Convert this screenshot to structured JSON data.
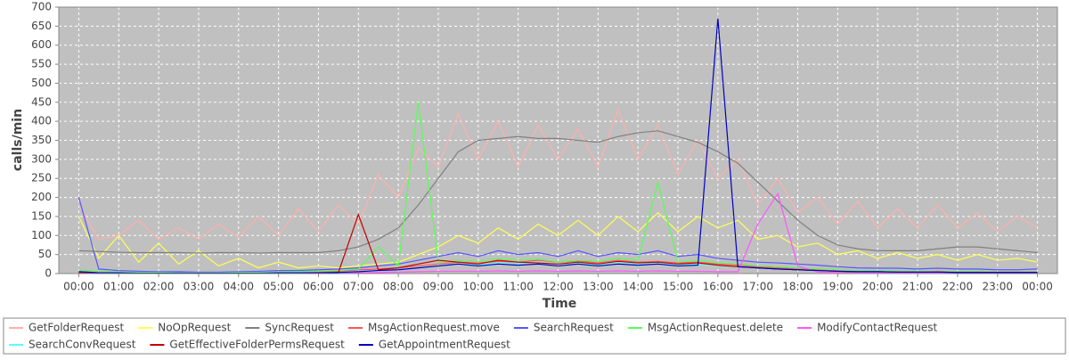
{
  "chart_data": {
    "type": "line",
    "y_label": "calls/min",
    "x_label": "Time",
    "x": [
      0,
      0.5,
      1,
      1.5,
      2,
      2.5,
      3,
      3.5,
      4,
      4.5,
      5,
      5.5,
      6,
      6.5,
      7,
      7.5,
      8,
      8.5,
      9,
      9.5,
      10,
      10.5,
      11,
      11.5,
      12,
      12.5,
      13,
      13.5,
      14,
      14.5,
      15,
      15.5,
      16,
      16.5,
      17,
      17.5,
      18,
      18.5,
      19,
      19.5,
      20,
      20.5,
      21,
      21.5,
      22,
      22.5,
      23,
      23.5,
      24
    ],
    "xlim": [
      -0.5,
      24.5
    ],
    "xticks": [
      {
        "value": 0,
        "label": "00:00"
      },
      {
        "value": 1,
        "label": "01:00"
      },
      {
        "value": 2,
        "label": "02:00"
      },
      {
        "value": 3,
        "label": "03:00"
      },
      {
        "value": 4,
        "label": "04:00"
      },
      {
        "value": 5,
        "label": "05:00"
      },
      {
        "value": 6,
        "label": "06:00"
      },
      {
        "value": 7,
        "label": "07:00"
      },
      {
        "value": 8,
        "label": "08:00"
      },
      {
        "value": 9,
        "label": "09:00"
      },
      {
        "value": 10,
        "label": "10:00"
      },
      {
        "value": 11,
        "label": "11:00"
      },
      {
        "value": 12,
        "label": "12:00"
      },
      {
        "value": 13,
        "label": "13:00"
      },
      {
        "value": 14,
        "label": "14:00"
      },
      {
        "value": 15,
        "label": "15:00"
      },
      {
        "value": 16,
        "label": "16:00"
      },
      {
        "value": 17,
        "label": "17:00"
      },
      {
        "value": 18,
        "label": "18:00"
      },
      {
        "value": 19,
        "label": "19:00"
      },
      {
        "value": 20,
        "label": "20:00"
      },
      {
        "value": 21,
        "label": "21:00"
      },
      {
        "value": 22,
        "label": "22:00"
      },
      {
        "value": 23,
        "label": "23:00"
      },
      {
        "value": 24,
        "label": "00:00"
      }
    ],
    "ylim": [
      0,
      700
    ],
    "yticks": [
      0,
      50,
      100,
      150,
      200,
      250,
      300,
      350,
      400,
      450,
      500,
      550,
      600,
      650,
      700
    ],
    "grid": true,
    "series": [
      {
        "name": "GetFolderRequest",
        "color": "#ffafaf",
        "values": [
          180,
          90,
          100,
          140,
          90,
          120,
          90,
          130,
          95,
          150,
          100,
          170,
          110,
          180,
          130,
          260,
          200,
          330,
          280,
          420,
          300,
          400,
          280,
          390,
          300,
          380,
          280,
          430,
          300,
          390,
          260,
          350,
          250,
          300,
          180,
          250,
          160,
          200,
          130,
          190,
          120,
          170,
          120,
          180,
          120,
          160,
          110,
          150,
          120
        ]
      },
      {
        "name": "NoOpRequest",
        "color": "#ffff55",
        "values": [
          150,
          40,
          100,
          30,
          80,
          25,
          60,
          20,
          40,
          15,
          30,
          15,
          20,
          15,
          20,
          25,
          30,
          50,
          70,
          100,
          80,
          120,
          90,
          130,
          100,
          140,
          100,
          150,
          110,
          160,
          110,
          150,
          120,
          140,
          90,
          100,
          70,
          80,
          50,
          60,
          40,
          55,
          40,
          50,
          35,
          50,
          35,
          40,
          30
        ]
      },
      {
        "name": "SyncRequest",
        "color": "#808080",
        "values": [
          60,
          58,
          56,
          55,
          55,
          55,
          54,
          55,
          55,
          54,
          55,
          55,
          55,
          60,
          70,
          90,
          120,
          180,
          250,
          320,
          350,
          355,
          360,
          355,
          355,
          350,
          345,
          360,
          370,
          375,
          360,
          345,
          320,
          290,
          240,
          190,
          140,
          100,
          75,
          65,
          60,
          60,
          60,
          65,
          70,
          70,
          65,
          60,
          55
        ]
      },
      {
        "name": "MsgActionRequest.move",
        "color": "#ff5555",
        "values": [
          5,
          3,
          4,
          3,
          3,
          2,
          3,
          2,
          2,
          3,
          4,
          3,
          5,
          6,
          10,
          12,
          15,
          20,
          25,
          30,
          28,
          32,
          30,
          35,
          30,
          33,
          28,
          35,
          30,
          32,
          28,
          30,
          25,
          22,
          18,
          15,
          12,
          10,
          8,
          8,
          6,
          6,
          5,
          6,
          5,
          5,
          4,
          4,
          4
        ]
      },
      {
        "name": "SearchRequest",
        "color": "#5555ff",
        "values": [
          200,
          12,
          8,
          6,
          5,
          5,
          4,
          4,
          5,
          6,
          8,
          8,
          10,
          12,
          15,
          20,
          25,
          35,
          45,
          55,
          45,
          60,
          50,
          55,
          45,
          60,
          45,
          55,
          50,
          60,
          45,
          50,
          40,
          35,
          30,
          28,
          25,
          22,
          18,
          15,
          14,
          14,
          12,
          14,
          12,
          12,
          10,
          10,
          12
        ]
      },
      {
        "name": "MsgActionRequest.delete",
        "color": "#55ff55",
        "values": [
          10,
          5,
          4,
          3,
          3,
          2,
          2,
          2,
          3,
          3,
          4,
          5,
          6,
          8,
          12,
          70,
          20,
          450,
          30,
          35,
          30,
          40,
          35,
          38,
          30,
          35,
          32,
          40,
          35,
          240,
          30,
          35,
          28,
          25,
          20,
          18,
          15,
          12,
          10,
          8,
          8,
          6,
          6,
          5,
          5,
          5,
          4,
          4,
          4
        ]
      },
      {
        "name": "ModifyContactRequest",
        "color": "#ff55ff",
        "values": [
          2,
          1,
          1,
          1,
          1,
          1,
          1,
          1,
          1,
          1,
          1,
          1,
          1,
          1,
          2,
          3,
          4,
          5,
          6,
          6,
          6,
          7,
          6,
          7,
          6,
          7,
          6,
          7,
          6,
          7,
          6,
          6,
          5,
          5,
          130,
          210,
          20,
          4,
          3,
          3,
          2,
          2,
          2,
          2,
          2,
          2,
          1,
          1,
          1
        ]
      },
      {
        "name": "SearchConvRequest",
        "color": "#55ffff",
        "values": [
          3,
          2,
          2,
          1,
          1,
          1,
          1,
          1,
          1,
          1,
          2,
          2,
          2,
          3,
          5,
          8,
          10,
          15,
          20,
          25,
          22,
          28,
          25,
          30,
          25,
          28,
          22,
          30,
          25,
          28,
          22,
          25,
          20,
          18,
          15,
          12,
          10,
          8,
          6,
          5,
          5,
          4,
          4,
          4,
          3,
          3,
          3,
          3,
          3
        ]
      },
      {
        "name": "GetEffectiveFolderPermsRequest",
        "color": "#c00000",
        "values": [
          2,
          1,
          1,
          1,
          1,
          1,
          1,
          1,
          1,
          1,
          1,
          1,
          2,
          3,
          155,
          10,
          15,
          25,
          35,
          30,
          25,
          35,
          30,
          28,
          25,
          30,
          25,
          32,
          28,
          30,
          25,
          28,
          22,
          18,
          15,
          12,
          10,
          8,
          6,
          5,
          5,
          4,
          4,
          4,
          3,
          3,
          3,
          3,
          3
        ]
      },
      {
        "name": "GetAppointmentRequest",
        "color": "#0000c0",
        "values": [
          5,
          2,
          2,
          1,
          1,
          1,
          1,
          1,
          1,
          1,
          2,
          2,
          2,
          3,
          5,
          8,
          10,
          15,
          20,
          25,
          20,
          25,
          22,
          25,
          20,
          25,
          20,
          25,
          22,
          25,
          20,
          22,
          670,
          18,
          15,
          12,
          10,
          8,
          6,
          5,
          5,
          4,
          4,
          4,
          3,
          3,
          3,
          3,
          3
        ]
      }
    ]
  }
}
